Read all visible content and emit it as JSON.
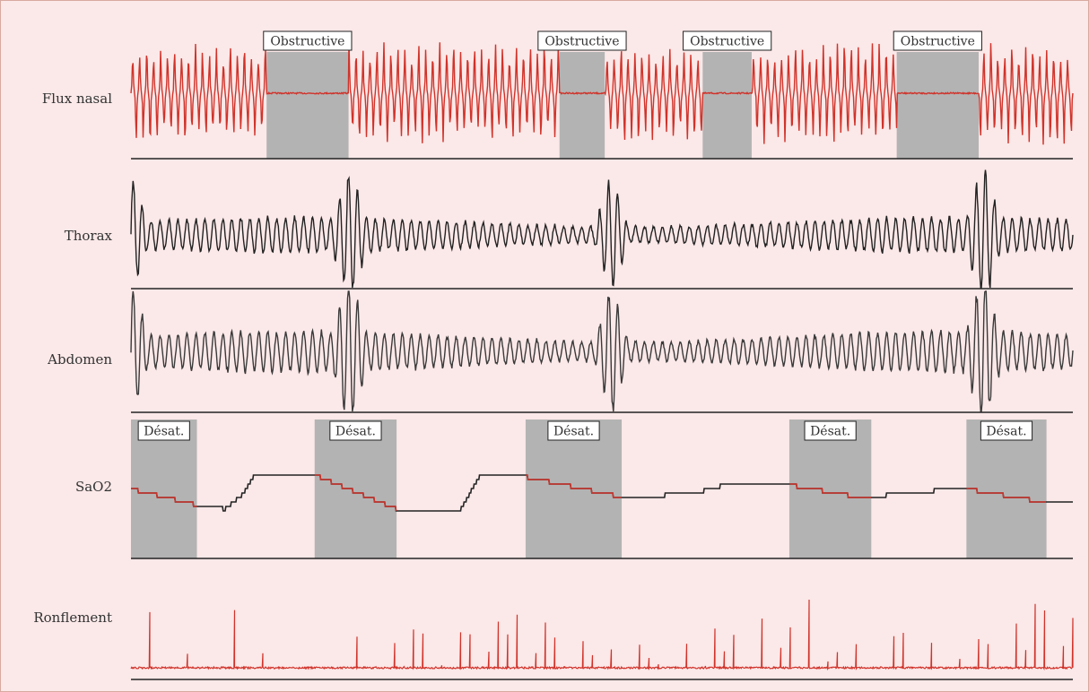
{
  "chart_data": {
    "type": "line",
    "title": "",
    "colors": {
      "background": "#fbe8e8",
      "event_band": "#b3b3b3",
      "trace_red": "#d0332a",
      "trace_dark": "#222222",
      "trace_abdomen": "#3a3a3a",
      "baseline": "#222222"
    },
    "channels": [
      {
        "name": "Flux nasal",
        "color": "red",
        "events": [
          {
            "label": "Obstructive",
            "start": 0.144,
            "end": 0.231
          },
          {
            "label": "Obstructive",
            "start": 0.455,
            "end": 0.503
          },
          {
            "label": "Obstructive",
            "start": 0.607,
            "end": 0.659
          },
          {
            "label": "Obstructive",
            "start": 0.813,
            "end": 0.9
          }
        ]
      },
      {
        "name": "Thorax",
        "color": "dark",
        "events": []
      },
      {
        "name": "Abdomen",
        "color": "dark",
        "events": []
      },
      {
        "name": "SaO2",
        "color": "dark",
        "events": [
          {
            "label": "Désat.",
            "start": 0.0,
            "end": 0.07
          },
          {
            "label": "Désat.",
            "start": 0.195,
            "end": 0.282
          },
          {
            "label": "Désat.",
            "start": 0.419,
            "end": 0.521
          },
          {
            "label": "Désat.",
            "start": 0.699,
            "end": 0.786
          },
          {
            "label": "Désat.",
            "start": 0.887,
            "end": 0.972
          }
        ],
        "levels": [
          [
            0,
            0.55
          ],
          [
            0.07,
            0.35
          ],
          [
            0.08,
            0.35
          ],
          [
            0.1,
            0.3
          ],
          [
            0.12,
            0.5
          ],
          [
            0.13,
            0.7
          ],
          [
            0.2,
            0.7
          ],
          [
            0.282,
            0.3
          ],
          [
            0.295,
            0.3
          ],
          [
            0.35,
            0.3
          ],
          [
            0.36,
            0.5
          ],
          [
            0.37,
            0.7
          ],
          [
            0.4,
            0.7
          ],
          [
            0.419,
            0.7
          ],
          [
            0.521,
            0.45
          ],
          [
            0.54,
            0.45
          ],
          [
            0.6,
            0.5
          ],
          [
            0.63,
            0.6
          ],
          [
            0.69,
            0.6
          ],
          [
            0.699,
            0.6
          ],
          [
            0.786,
            0.42
          ],
          [
            0.81,
            0.5
          ],
          [
            0.887,
            0.55
          ],
          [
            0.972,
            0.38
          ],
          [
            1.0,
            0.4
          ]
        ]
      },
      {
        "name": "Ronflement",
        "color": "red",
        "events": []
      }
    ]
  }
}
